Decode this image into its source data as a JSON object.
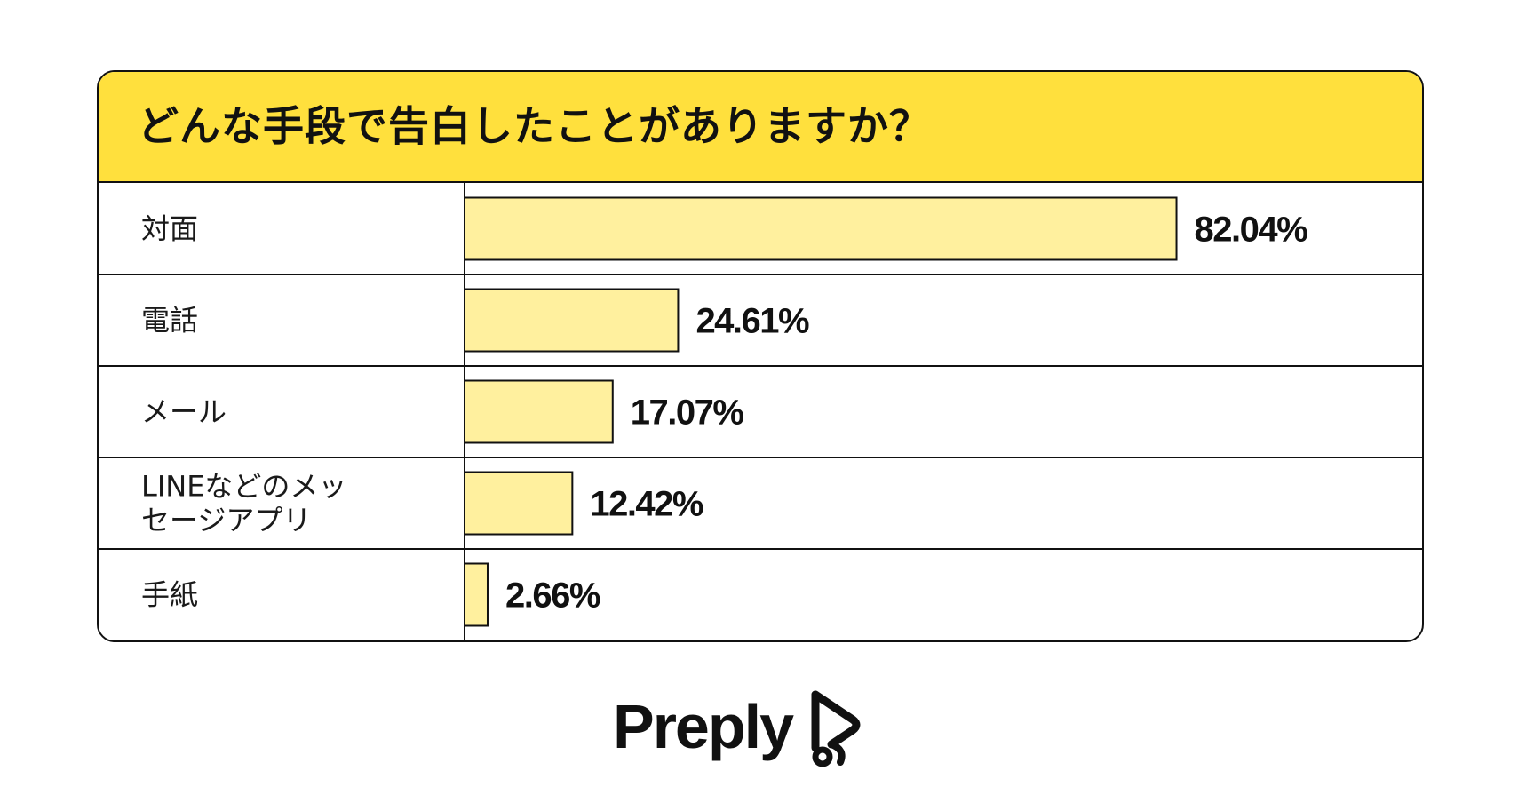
{
  "title": "どんな手段で告白したことがありますか？",
  "chart_data": {
    "type": "bar",
    "orientation": "horizontal",
    "title": "どんな手段で告白したことがありますか？",
    "categories": [
      [
        "対面"
      ],
      [
        "電話"
      ],
      [
        "メール"
      ],
      [
        "LINEなどのメッ",
        "セージアプリ"
      ],
      [
        "手紙"
      ]
    ],
    "values": [
      82.04,
      24.61,
      17.07,
      12.42,
      2.66
    ],
    "value_labels": [
      "82.04%",
      "24.61%",
      "17.07%",
      "12.42%",
      "2.66%"
    ],
    "xlim": [
      0,
      100
    ],
    "grid": false,
    "legend": "none"
  },
  "logo": {
    "text": "Preply"
  },
  "colors": {
    "header_background": "#ffe03d",
    "bar_fill": "#fff09e",
    "border": "#111111",
    "text": "#111111"
  }
}
